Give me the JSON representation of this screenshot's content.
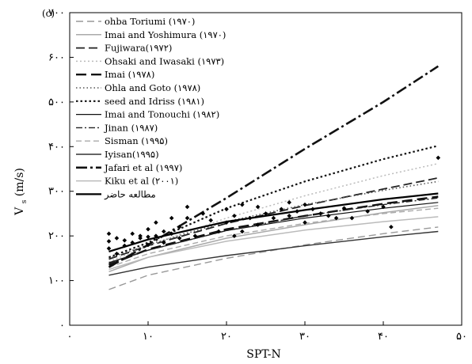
{
  "chart_data": {
    "type": "line",
    "panel_label": "(c)",
    "xlabel": "SPT-N",
    "ylabel": "V",
    "ylabel_subscript": "s",
    "ylabel_units": "(m/s)",
    "xlim": [
      0,
      50
    ],
    "ylim": [
      0,
      700
    ],
    "xticks": [
      {
        "value": 0,
        "label": "۰"
      },
      {
        "value": 10,
        "label": "۱۰"
      },
      {
        "value": 20,
        "label": "۲۰"
      },
      {
        "value": 30,
        "label": "۳۰"
      },
      {
        "value": 40,
        "label": "۴۰"
      },
      {
        "value": 50,
        "label": "۵۰"
      }
    ],
    "yticks": [
      {
        "value": 0,
        "label": "۰"
      },
      {
        "value": 100,
        "label": "۱۰۰"
      },
      {
        "value": 200,
        "label": "۲۰۰"
      },
      {
        "value": 300,
        "label": "۳۰۰"
      },
      {
        "value": 400,
        "label": "۴۰۰"
      },
      {
        "value": 500,
        "label": "۵۰۰"
      },
      {
        "value": 600,
        "label": "۶۰۰"
      },
      {
        "value": 700,
        "label": "۷۰۰"
      }
    ],
    "legend_placement": "top-left",
    "series": [
      {
        "name": "ohba Toriumi (۱۹۷۰)",
        "color": "#999999",
        "dash": "9 5",
        "width": 1.4,
        "x": [
          5,
          10,
          20,
          30,
          40,
          47
        ],
        "y": [
          80,
          112,
          150,
          180,
          205,
          220
        ]
      },
      {
        "name": "Imai and Yoshimura (۱۹۷۰)",
        "color": "#aaaaaa",
        "dash": "",
        "width": 1.5,
        "x": [
          5,
          10,
          20,
          30,
          40,
          47
        ],
        "y": [
          120,
          152,
          195,
          225,
          252,
          268
        ]
      },
      {
        "name": "Fujiwara(۱۹۷۲)",
        "color": "#222222",
        "dash": "11 5",
        "width": 1.8,
        "x": [
          5,
          10,
          20,
          30,
          40,
          47
        ],
        "y": [
          148,
          178,
          228,
          268,
          305,
          330
        ]
      },
      {
        "name": "Ohsaki and Iwasaki (۱۹۷۳)",
        "color": "#bbbbbb",
        "dash": "2 3",
        "width": 1.5,
        "x": [
          5,
          10,
          20,
          30,
          40,
          47
        ],
        "y": [
          142,
          178,
          240,
          290,
          335,
          362
        ]
      },
      {
        "name": "Imai (۱۹۷۸)",
        "color": "#111111",
        "dash": "13 6",
        "width": 2.4,
        "x": [
          5,
          10,
          20,
          30,
          40,
          47
        ],
        "y": [
          135,
          170,
          215,
          245,
          272,
          288
        ]
      },
      {
        "name": "Ohla and Goto (۱۹۷۸)",
        "color": "#555555",
        "dash": "1.5 3",
        "width": 1.6,
        "x": [
          5,
          10,
          20,
          30,
          40,
          47
        ],
        "y": [
          150,
          180,
          232,
          270,
          302,
          322
        ]
      },
      {
        "name": "seed and Idriss (۱۹۸۱)",
        "color": "#111111",
        "dash": "2.5 3",
        "width": 2.2,
        "x": [
          5,
          10,
          20,
          30,
          40,
          47
        ],
        "y": [
          152,
          185,
          262,
          322,
          372,
          402
        ]
      },
      {
        "name": "Imai and Tonouchi (۱۹۸۲)",
        "color": "#111111",
        "dash": "",
        "width": 1.2,
        "x": [
          5,
          10,
          20,
          30,
          40,
          47
        ],
        "y": [
          140,
          168,
          212,
          240,
          262,
          275
        ]
      },
      {
        "name": "Jinan (۱۹۸۷)",
        "color": "#222222",
        "dash": "8 3 2 3",
        "width": 1.4,
        "x": [
          5,
          10,
          20,
          30,
          40,
          47
        ],
        "y": [
          138,
          168,
          212,
          245,
          270,
          285
        ]
      },
      {
        "name": "Sisman (۱۹۹۵)",
        "color": "#aaaaaa",
        "dash": "7 4",
        "width": 1.4,
        "x": [
          5,
          10,
          20,
          30,
          40,
          47
        ],
        "y": [
          130,
          160,
          200,
          228,
          250,
          262
        ]
      },
      {
        "name": "Iyisan(۱۹۹۵)",
        "color": "#333333",
        "dash": "",
        "width": 1.4,
        "x": [
          5,
          10,
          20,
          30,
          40,
          47
        ],
        "y": [
          112,
          130,
          156,
          178,
          198,
          210
        ]
      },
      {
        "name": "Jafari et al (۱۹۹۷)",
        "color": "#111111",
        "dash": "14 4 3 4",
        "width": 2.6,
        "x": [
          5,
          10,
          20,
          30,
          40,
          47
        ],
        "y": [
          130,
          180,
          285,
          395,
          500,
          580
        ]
      },
      {
        "name": "Kiku et al (۲۰۰۱)",
        "color": "#bbbbbb",
        "dash": "",
        "width": 1.5,
        "x": [
          5,
          10,
          20,
          30,
          40,
          47
        ],
        "y": [
          125,
          152,
          188,
          213,
          232,
          243
        ]
      },
      {
        "name": "مطالعه حاضر",
        "color": "#000000",
        "dash": "",
        "width": 2.2,
        "x": [
          5,
          10,
          20,
          30,
          40,
          47
        ],
        "y": [
          165,
          192,
          232,
          258,
          282,
          295
        ]
      }
    ],
    "observations": {
      "marker": "diamond",
      "color": "#000000",
      "x": [
        5,
        5,
        5,
        6,
        6,
        7,
        7,
        8,
        8,
        9,
        9,
        10,
        10,
        10,
        11,
        11,
        12,
        12,
        13,
        13,
        14,
        14,
        15,
        15,
        16,
        17,
        18,
        19,
        20,
        20,
        21,
        21,
        22,
        22,
        23,
        24,
        24,
        25,
        26,
        27,
        28,
        28,
        29,
        30,
        30,
        31,
        32,
        33,
        34,
        35,
        36,
        38,
        40,
        41,
        47
      ],
      "y": [
        188,
        205,
        172,
        160,
        195,
        190,
        178,
        185,
        205,
        200,
        195,
        215,
        198,
        180,
        200,
        230,
        210,
        185,
        240,
        205,
        220,
        195,
        240,
        265,
        200,
        250,
        235,
        210,
        230,
        260,
        200,
        245,
        270,
        210,
        240,
        265,
        225,
        250,
        240,
        260,
        275,
        245,
        255,
        270,
        230,
        260,
        250,
        245,
        240,
        262,
        240,
        255,
        265,
        220,
        375
      ]
    }
  }
}
